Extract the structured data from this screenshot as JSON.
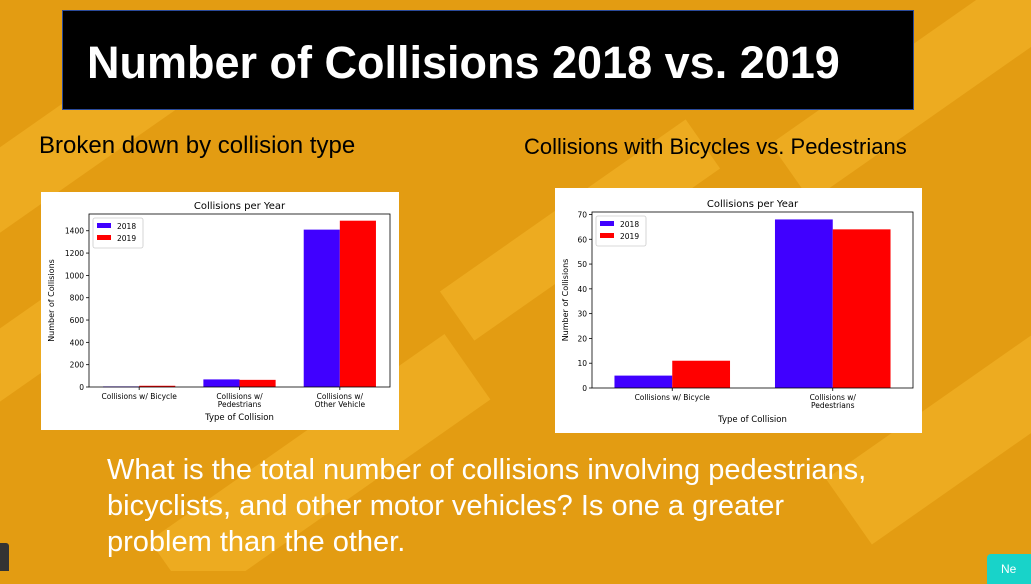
{
  "slide": {
    "title": "Number of Collisions 2018 vs. 2019",
    "left_subtitle": "Broken down by collision type",
    "right_subtitle": "Collisions with Bicycles vs. Pedestrians",
    "question": "What is the total number of collisions involving pedestrians, bicyclists, and other motor vehicles? Is one a greater problem than the other.",
    "next_button": "Ne"
  },
  "chart_data": [
    {
      "type": "bar",
      "title": "Collisions per Year",
      "xlabel": "Type of Collision",
      "ylabel": "Number of Collisions",
      "categories": [
        "Collisions w/ Bicycle",
        "Collisions w/\nPedestrians",
        "Collisions w/\nOther Vehicle"
      ],
      "series": [
        {
          "name": "2018",
          "color": "#4000ff",
          "values": [
            5,
            68,
            1410
          ]
        },
        {
          "name": "2019",
          "color": "#ff0000",
          "values": [
            11,
            64,
            1490
          ]
        }
      ],
      "ylim": [
        0,
        1550
      ],
      "yticks": [
        0,
        200,
        400,
        600,
        800,
        1000,
        1200,
        1400
      ],
      "legend": "top-left"
    },
    {
      "type": "bar",
      "title": "Collisions per Year",
      "xlabel": "Type of Collision",
      "ylabel": "Number of Collisions",
      "categories": [
        "Collisions w/ Bicycle",
        "Collisions w/\nPedestrians"
      ],
      "series": [
        {
          "name": "2018",
          "color": "#4000ff",
          "values": [
            5,
            68
          ]
        },
        {
          "name": "2019",
          "color": "#ff0000",
          "values": [
            11,
            64
          ]
        }
      ],
      "ylim": [
        0,
        71
      ],
      "yticks": [
        0,
        10,
        20,
        30,
        40,
        50,
        60,
        70
      ],
      "legend": "top-left"
    }
  ]
}
